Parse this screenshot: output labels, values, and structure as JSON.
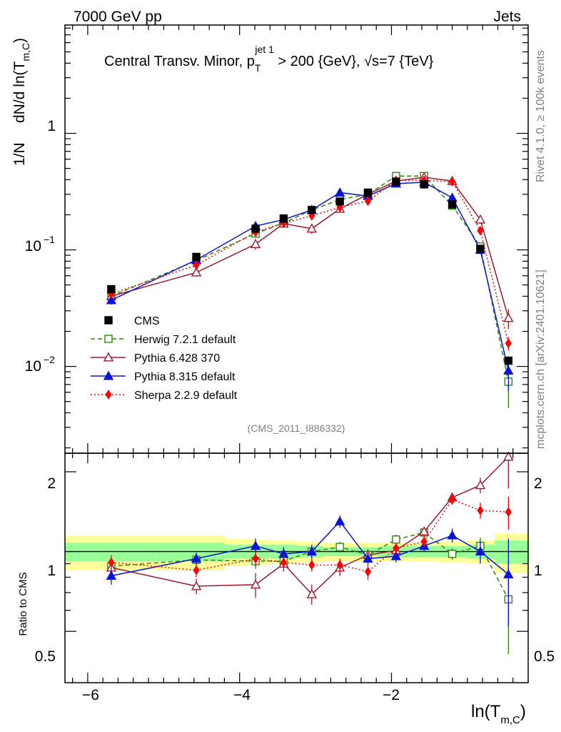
{
  "header": {
    "energy_label": "7000 GeV pp",
    "category_label": "Jets",
    "title_main": "Central Transv. Minor, p",
    "title_sub": "T",
    "title_sup": "jet 1",
    "title_cut": " > 200 {GeV}, √s=7 {TeV}",
    "analysis_id": "(CMS_2011_I886332)",
    "side_rivet": "Rivet 4.1.0, ≥ 100k events",
    "side_source": "mcplots.cern.ch [arXiv:2401.10621]"
  },
  "axes": {
    "y_main_prefix": "1/N",
    "y_main_text": "dN/d ln(T",
    "y_main_sub": "m,C",
    "y_main_suffix": ")",
    "y_ratio": "Ratio to CMS",
    "x_main": "ln(T",
    "x_sub": "m,C",
    "x_suffix": ")",
    "x_ticks": [
      "−6",
      "−4",
      "−2"
    ],
    "y_main_ticks": [
      "1",
      "10",
      "10"
    ],
    "y_main_tick_exps": [
      "",
      "−1",
      "−2"
    ],
    "y_ratio_ticks": [
      "2",
      "1",
      "0.5"
    ]
  },
  "legend": [
    {
      "label": "CMS",
      "color": "#000000",
      "marker": "filled-square",
      "line": "none"
    },
    {
      "label": "Herwig 7.2.1 default",
      "color": "#2c8a0b",
      "marker": "open-square",
      "line": "dashed"
    },
    {
      "label": "Pythia 6.428 370",
      "color": "#a0182c",
      "marker": "open-triangle",
      "line": "solid"
    },
    {
      "label": "Pythia 8.315 default",
      "color": "#0a14d6",
      "marker": "filled-triangle",
      "line": "solid"
    },
    {
      "label": "Sherpa 2.2.9 default",
      "color": "#ff0000",
      "marker": "filled-diamond",
      "line": "dotted"
    }
  ],
  "chart_data": {
    "type": "line",
    "title": "Central Transv. Minor, pT jet1 > 200 {GeV}, √s=7 {TeV}",
    "xlabel": "ln(Tm,C)",
    "ylabel": "1/N dN/d ln(Tm,C)",
    "xlim": [
      -6.3,
      -0.2
    ],
    "ylim_main": [
      0.0018,
      8.5
    ],
    "yscale_main": "log",
    "ratio_ylim": [
      0.32,
      2.35
    ],
    "ratio_yscale": "log",
    "x": [
      -5.69,
      -4.57,
      -3.79,
      -3.42,
      -3.05,
      -2.68,
      -2.31,
      -1.94,
      -1.57,
      -1.2,
      -0.83,
      -0.46
    ],
    "cms": [
      0.046,
      0.087,
      0.152,
      0.186,
      0.22,
      0.26,
      0.31,
      0.385,
      0.365,
      0.245,
      0.102,
      0.0112
    ],
    "series": [
      {
        "name": "Herwig 7.2.1 default",
        "color": "#2c8a0b",
        "values": [
          0.04,
          0.081,
          0.138,
          0.17,
          0.22,
          0.27,
          0.3,
          0.43,
          0.43,
          0.24,
          0.107,
          0.0074
        ],
        "err": [
          0.003,
          0.005,
          0.01,
          0.012,
          0.012,
          0.015,
          0.015,
          0.02,
          0.02,
          0.015,
          0.009,
          0.003
        ]
      },
      {
        "name": "Pythia 6.428 370",
        "color": "#a0182c",
        "values": [
          0.04,
          0.064,
          0.112,
          0.168,
          0.152,
          0.225,
          0.3,
          0.39,
          0.42,
          0.39,
          0.182,
          0.026
        ],
        "err": [
          0.003,
          0.005,
          0.012,
          0.012,
          0.015,
          0.015,
          0.015,
          0.02,
          0.02,
          0.02,
          0.015,
          0.005
        ]
      },
      {
        "name": "Pythia 8.315 default",
        "color": "#0a14d6",
        "values": [
          0.037,
          0.082,
          0.16,
          0.182,
          0.22,
          0.31,
          0.29,
          0.37,
          0.38,
          0.28,
          0.1,
          0.0092
        ],
        "err": [
          0.003,
          0.005,
          0.012,
          0.012,
          0.012,
          0.015,
          0.015,
          0.02,
          0.02,
          0.015,
          0.008,
          0.003
        ]
      },
      {
        "name": "Sherpa 2.2.9 default",
        "color": "#ff0000",
        "values": [
          0.042,
          0.074,
          0.142,
          0.17,
          0.196,
          0.232,
          0.262,
          0.395,
          0.395,
          0.385,
          0.146,
          0.0158
        ],
        "err": [
          0.003,
          0.005,
          0.01,
          0.012,
          0.012,
          0.015,
          0.015,
          0.02,
          0.02,
          0.02,
          0.01,
          0.002
        ]
      }
    ],
    "ratio": {
      "Herwig 7.2.1 default": [
        0.88,
        0.93,
        0.92,
        0.92,
        1.0,
        1.04,
        0.97,
        1.11,
        1.18,
        0.98,
        1.05,
        0.66
      ],
      "Pythia 6.428 370": [
        0.87,
        0.74,
        0.75,
        0.9,
        0.69,
        0.87,
        0.97,
        1.01,
        1.19,
        1.6,
        1.78,
        2.28
      ],
      "Pythia 8.315 default": [
        0.81,
        0.94,
        1.05,
        0.98,
        1.0,
        1.3,
        0.94,
        0.96,
        1.05,
        1.15,
        1.0,
        0.82
      ],
      "Sherpa 2.2.9 default": [
        0.91,
        0.85,
        0.94,
        0.91,
        0.89,
        0.89,
        0.84,
        1.03,
        1.09,
        1.57,
        1.43,
        1.41
      ]
    },
    "ratio_err": {
      "Herwig 7.2.1 default": [
        0.06,
        0.05,
        0.06,
        0.05,
        0.05,
        0.05,
        0.05,
        0.05,
        0.05,
        0.05,
        0.08,
        0.25
      ],
      "Pythia 6.428 370": [
        0.06,
        0.05,
        0.08,
        0.06,
        0.06,
        0.06,
        0.05,
        0.05,
        0.05,
        0.07,
        0.12,
        0.55
      ],
      "Pythia 8.315 default": [
        0.06,
        0.05,
        0.07,
        0.06,
        0.06,
        0.07,
        0.05,
        0.05,
        0.05,
        0.07,
        0.1,
        0.3
      ],
      "Sherpa 2.2.9 default": [
        0.06,
        0.05,
        0.06,
        0.05,
        0.05,
        0.05,
        0.06,
        0.05,
        0.05,
        0.07,
        0.1,
        0.2
      ]
    },
    "uncertainty_bands": {
      "x_edges": [
        -6.3,
        -5.1,
        -4.2,
        -3.9,
        -3.6,
        -3.25,
        -2.9,
        -2.5,
        -2.15,
        -1.75,
        -1.38,
        -1.0,
        -0.64,
        -0.2
      ],
      "inner": [
        0.08,
        0.08,
        0.06,
        0.06,
        0.06,
        0.05,
        0.04,
        0.04,
        0.05,
        0.05,
        0.05,
        0.06,
        0.1,
        0.16
      ],
      "outer": [
        0.15,
        0.15,
        0.12,
        0.11,
        0.1,
        0.09,
        0.08,
        0.08,
        0.08,
        0.08,
        0.09,
        0.1,
        0.17,
        0.25
      ]
    }
  }
}
